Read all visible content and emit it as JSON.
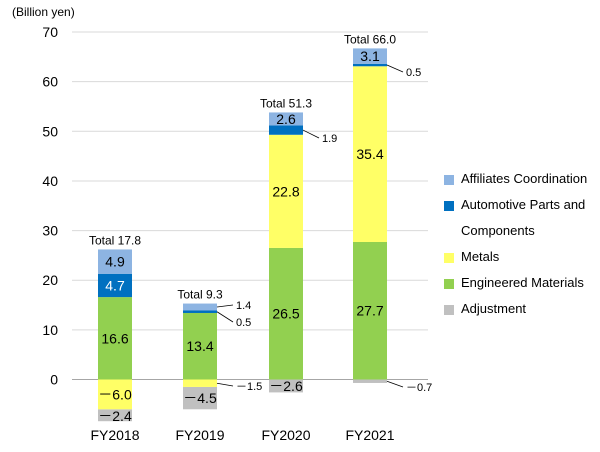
{
  "chart_data": {
    "type": "bar",
    "stacked": true,
    "ylabel": "(Billion yen)",
    "ylim": [
      -8,
      70
    ],
    "yticks": [
      0,
      10,
      20,
      30,
      40,
      50,
      60,
      70
    ],
    "grid": true,
    "legend_position": "right",
    "categories": [
      "FY2018",
      "FY2019",
      "FY2020",
      "FY2021"
    ],
    "totals": [
      "Total 17.8",
      "Total 9.3",
      "Total 51.3",
      "Total 66.0"
    ],
    "series": [
      {
        "name": "Adjustment",
        "color": "#c0c0c0",
        "values": [
          -2.4,
          -4.5,
          -2.6,
          -0.7
        ],
        "labels": [
          "－2.4",
          "－4.5",
          "－2.6",
          "－0.7"
        ]
      },
      {
        "name": "Engineered Materials",
        "color": "#92d050",
        "values": [
          16.6,
          13.4,
          26.5,
          27.7
        ],
        "labels": [
          "16.6",
          "13.4",
          "26.5",
          "27.7"
        ]
      },
      {
        "name": "Metals",
        "color": "#ffff66",
        "values": [
          -6.0,
          -1.5,
          22.8,
          35.4
        ],
        "labels": [
          "－6.0",
          "－1.5",
          "22.8",
          "35.4"
        ]
      },
      {
        "name": "Automotive Parts and Components",
        "color": "#0070c0",
        "values": [
          4.7,
          0.5,
          1.9,
          0.5
        ],
        "labels": [
          "4.7",
          "0.5",
          "1.9",
          "0.5"
        ]
      },
      {
        "name": "Affiliates Coordination",
        "color": "#8db4e2",
        "values": [
          4.9,
          1.4,
          2.6,
          3.1
        ],
        "labels": [
          "4.9",
          "1.4",
          "2.6",
          "3.1"
        ]
      }
    ]
  }
}
